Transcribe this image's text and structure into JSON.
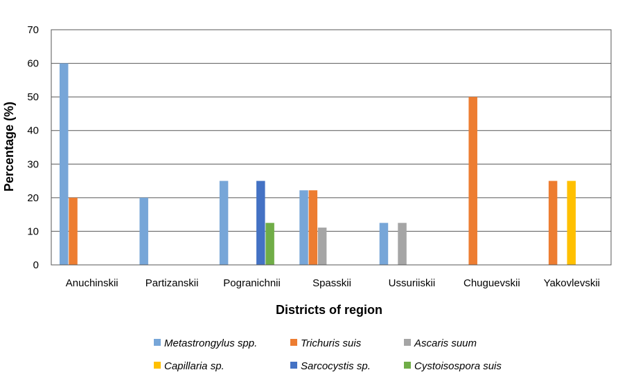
{
  "chart_data": {
    "type": "bar",
    "title": "",
    "xlabel": "Districts of region",
    "ylabel": "Percentage (%)",
    "ylim": [
      0,
      70
    ],
    "yticks": [
      "0",
      "10",
      "20",
      "30",
      "40",
      "50",
      "60",
      "70"
    ],
    "grid": true,
    "legend_position": "bottom",
    "categories": [
      "Anuchinskii",
      "Partizanskii",
      "Pogranichnii",
      "Spasskii",
      "Ussuriiskii",
      "Chuguevskii",
      "Yakovlevskii"
    ],
    "series": [
      {
        "name": "Metastrongylus spp.",
        "color": "#77a6d8",
        "values": [
          60,
          20,
          25,
          22.2,
          12.5,
          0,
          0
        ]
      },
      {
        "name": "Trichuris suis",
        "color": "#ed7d31",
        "values": [
          20,
          0,
          0,
          22.2,
          0,
          50,
          25
        ]
      },
      {
        "name": "Ascaris suum",
        "color": "#a5a5a5",
        "values": [
          0,
          0,
          0,
          11.1,
          12.5,
          0,
          0
        ]
      },
      {
        "name": "Capillaria sp.",
        "color": "#ffc000",
        "values": [
          0,
          0,
          0,
          0,
          0,
          0,
          25
        ]
      },
      {
        "name": "Sarcocystis sp.",
        "color": "#4472c4",
        "values": [
          0,
          0,
          25,
          0,
          0,
          0,
          0
        ]
      },
      {
        "name": "Cystoisospora suis",
        "color": "#70ad47",
        "values": [
          0,
          0,
          12.5,
          0,
          0,
          0,
          0
        ]
      }
    ]
  }
}
